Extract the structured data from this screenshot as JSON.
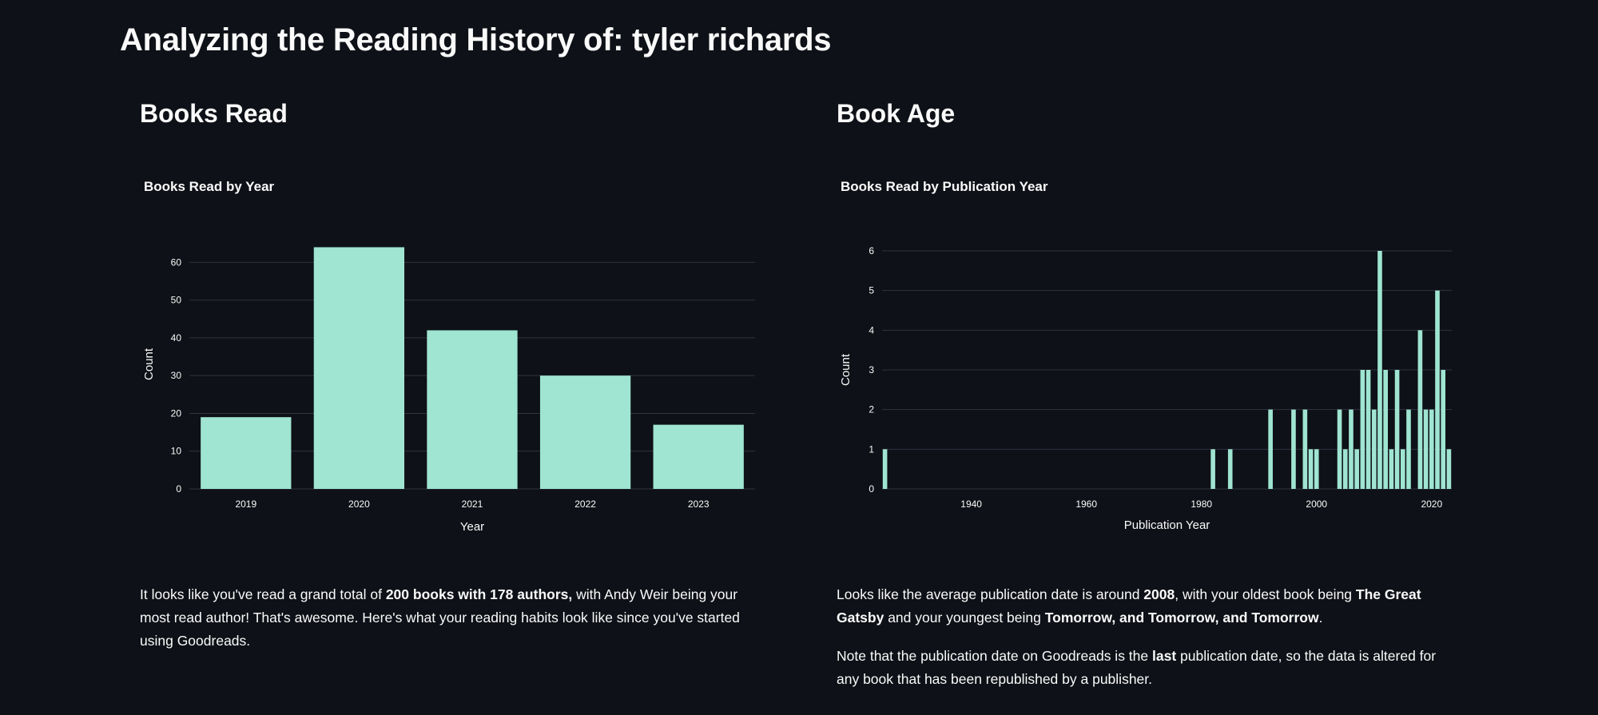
{
  "page": {
    "title": "Analyzing the Reading History of: tyler richards"
  },
  "left": {
    "section_title": "Books Read",
    "summary": {
      "t1": "It looks like you've read a grand total of ",
      "b1": "200 books with 178 authors,",
      "t2": " with Andy Weir being your most read author! That's awesome. Here's what your reading habits look like since you've started using Goodreads."
    }
  },
  "right": {
    "section_title": "Book Age",
    "summary": {
      "t1": "Looks like the average publication date is around ",
      "b1": "2008",
      "t2": ", with your oldest book being ",
      "b2": "The Great Gatsby",
      "t3": " and your youngest being ",
      "b3": "Tomorrow, and Tomorrow, and Tomorrow",
      "t4": "."
    },
    "note": {
      "t1": "Note that the publication date on Goodreads is the ",
      "b1": "last",
      "t2": " publication date, so the data is altered for any book that has been republished by a publisher."
    }
  },
  "chart_data": [
    {
      "type": "bar",
      "title": "Books Read by Year",
      "xlabel": "Year",
      "ylabel": "Count",
      "categories": [
        "2019",
        "2020",
        "2021",
        "2022",
        "2023"
      ],
      "values": [
        19,
        64,
        42,
        30,
        17
      ],
      "ylim": [
        0,
        66
      ],
      "yticks": [
        0,
        10,
        20,
        30,
        40,
        50,
        60
      ],
      "grid": true,
      "color": "#9fe5d1"
    },
    {
      "type": "bar",
      "title": "Books Read by Publication Year",
      "xlabel": "Publication Year",
      "ylabel": "Count",
      "x": [
        1925,
        1982,
        1985,
        1992,
        1996,
        1998,
        1999,
        2000,
        2004,
        2005,
        2006,
        2007,
        2008,
        2009,
        2010,
        2011,
        2012,
        2013,
        2014,
        2015,
        2016,
        2018,
        2019,
        2020,
        2021,
        2022,
        2023
      ],
      "values": [
        1,
        1,
        1,
        2,
        2,
        2,
        1,
        1,
        2,
        1,
        2,
        1,
        3,
        3,
        2,
        6,
        3,
        1,
        3,
        1,
        2,
        4,
        2,
        2,
        5,
        3,
        1
      ],
      "xlim": [
        1925,
        2023
      ],
      "xticks": [
        1940,
        1960,
        1980,
        2000,
        2020
      ],
      "ylim": [
        0,
        6
      ],
      "yticks": [
        0,
        1,
        2,
        3,
        4,
        5,
        6
      ],
      "grid": true,
      "color": "#9fe5d1"
    }
  ]
}
